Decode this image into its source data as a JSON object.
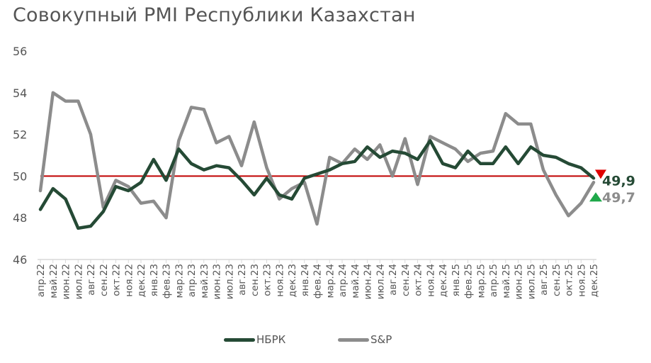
{
  "title": "Совокупный PMI Республики Казахстан",
  "colors": {
    "nbrk": "#254a35",
    "sp": "#8c8c8c",
    "threshold": "#c00000",
    "down_marker": "#e00000",
    "up_marker": "#1fa84a",
    "text": "#555555",
    "axis": "#d9d9d9"
  },
  "legend": {
    "nbrk_label": "НБРК",
    "sp_label": "S&P"
  },
  "end_labels": {
    "nbrk": "49,9",
    "sp": "49,7",
    "nbrk_marker": "down-triangle-icon",
    "sp_marker": "up-triangle-icon"
  },
  "chart_data": {
    "type": "line",
    "title": "Совокупный PMI Республики Казахстан",
    "xlabel": "",
    "ylabel": "",
    "ylim": [
      46,
      56
    ],
    "yticks": [
      46,
      48,
      50,
      52,
      54,
      56
    ],
    "grid": false,
    "threshold": 50,
    "legend_position": "bottom",
    "categories": [
      "апр.22",
      "май.22",
      "июн.22",
      "июл.22",
      "авг.22",
      "сен.22",
      "окт.22",
      "ноя.22",
      "дек.22",
      "янв.23",
      "фев.23",
      "мар.23",
      "апр.23",
      "май.23",
      "июн.23",
      "июл.23",
      "авг.23",
      "сен.23",
      "окт.23",
      "ноя.23",
      "дек.23",
      "янв.24",
      "фев.24",
      "мар.24",
      "апр.24",
      "май.24",
      "июн.24",
      "июл.24",
      "авг.24",
      "сен.24",
      "окт.24",
      "ноя.24",
      "дек.24",
      "янв.25",
      "фев.25",
      "мар.25",
      "апр.25",
      "май.25",
      "июн.25",
      "июл.25",
      "авг.25",
      "сен.25",
      "окт.25",
      "ноя.25",
      "дек.25"
    ],
    "series": [
      {
        "name": "НБРК",
        "values": [
          48.4,
          49.4,
          48.9,
          47.5,
          47.6,
          48.3,
          49.5,
          49.3,
          49.7,
          50.8,
          49.8,
          51.3,
          50.6,
          50.3,
          50.5,
          50.4,
          49.8,
          49.1,
          49.9,
          49.1,
          48.9,
          49.9,
          50.1,
          50.3,
          50.6,
          50.7,
          51.4,
          50.9,
          51.2,
          51.1,
          50.8,
          51.7,
          50.6,
          50.4,
          51.2,
          50.6,
          50.6,
          51.4,
          50.6,
          51.4,
          51.0,
          50.9,
          50.6,
          50.4,
          49.9
        ]
      },
      {
        "name": "S&P",
        "values": [
          49.3,
          54.0,
          53.6,
          53.6,
          52.0,
          48.5,
          49.8,
          49.5,
          48.7,
          48.8,
          48.0,
          51.7,
          53.3,
          53.2,
          51.6,
          51.9,
          50.5,
          52.6,
          50.4,
          48.9,
          49.4,
          49.7,
          47.7,
          50.9,
          50.6,
          51.3,
          50.8,
          51.5,
          50.0,
          51.8,
          49.6,
          51.9,
          51.6,
          51.3,
          50.7,
          51.1,
          51.2,
          53.0,
          52.5,
          52.5,
          50.3,
          49.1,
          48.1,
          48.7,
          49.7
        ]
      }
    ],
    "annotations": [
      {
        "series": "НБРК",
        "text": "49,9",
        "marker": "down-triangle"
      },
      {
        "series": "S&P",
        "text": "49,7",
        "marker": "up-triangle"
      }
    ]
  }
}
